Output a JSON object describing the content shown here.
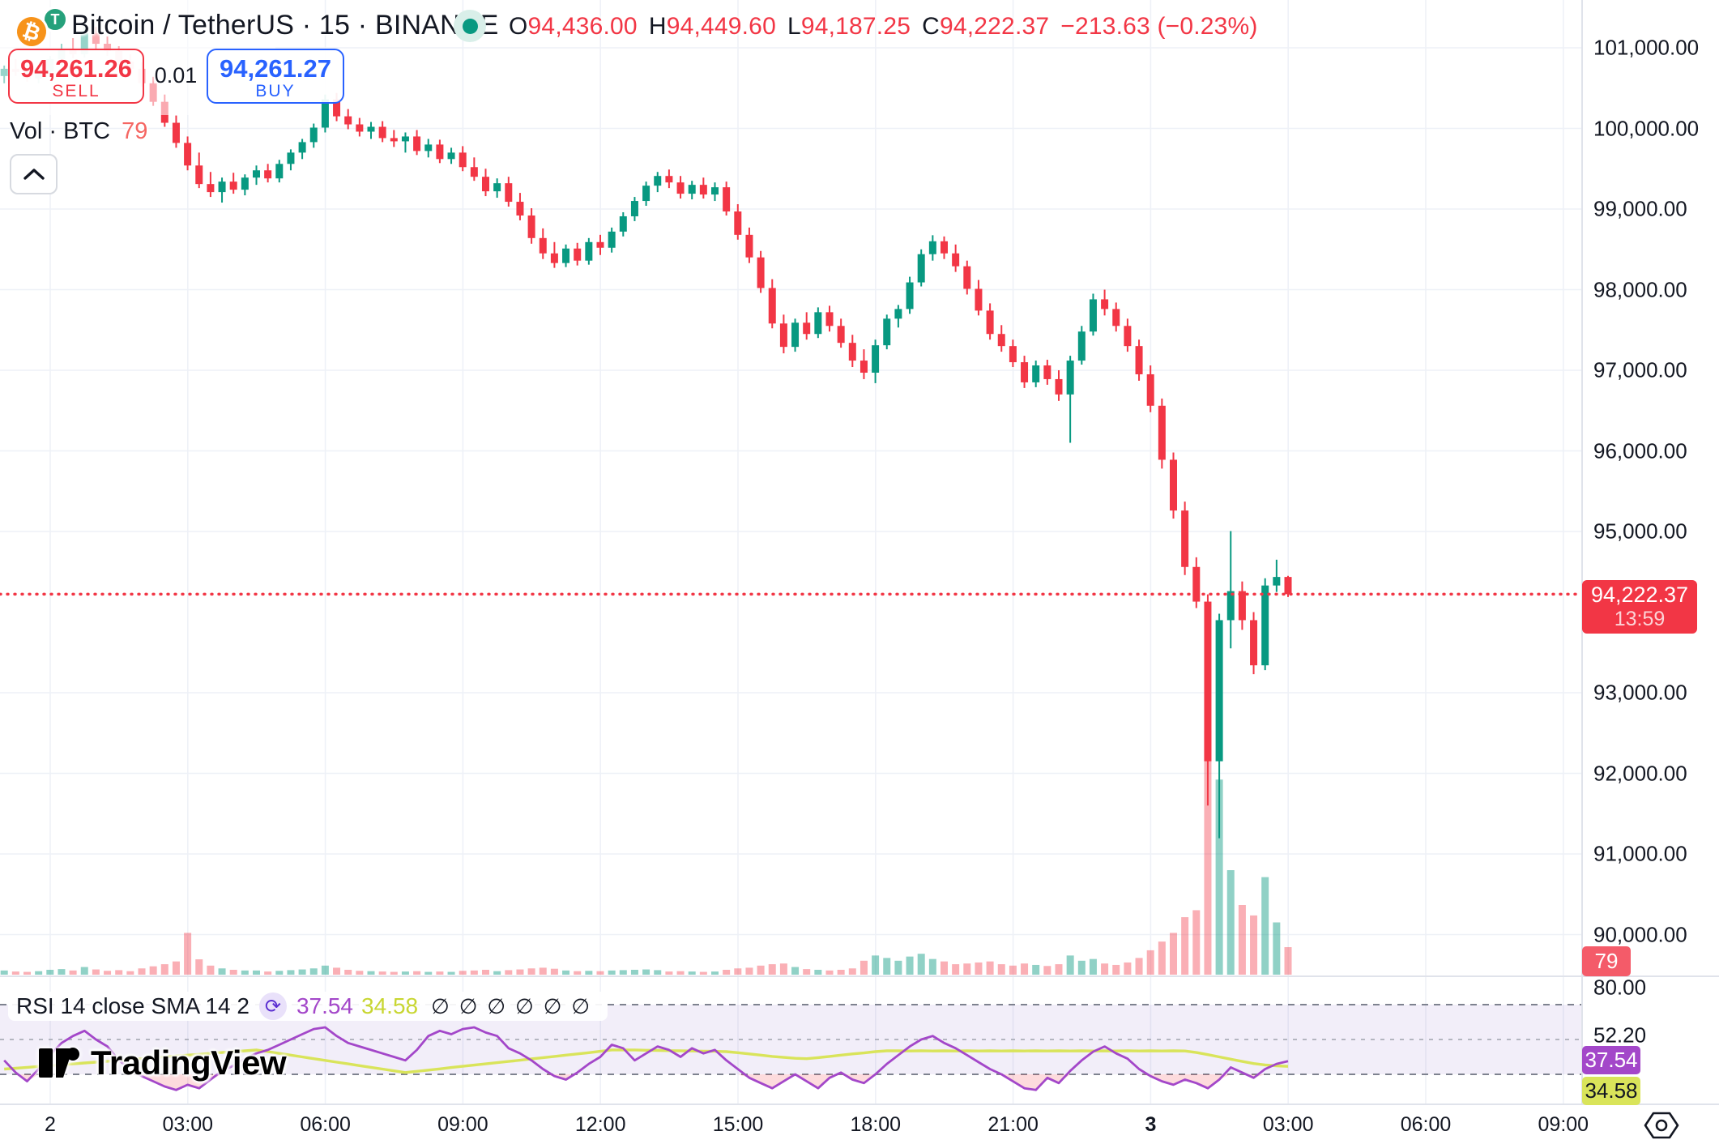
{
  "header": {
    "symbol_title": "Bitcoin / TetherUS · 15 · BINANCE",
    "ohlc": {
      "o_label": "O",
      "o": "94,436.00",
      "h_label": "H",
      "h": "94,449.60",
      "l_label": "L",
      "l": "94,187.25",
      "c_label": "C",
      "c": "94,222.37",
      "change": "−213.63 (−0.23%)"
    }
  },
  "trade_panel": {
    "sell_price": "94,261.26",
    "sell_label": "SELL",
    "spread": "0.01",
    "buy_price": "94,261.27",
    "buy_label": "BUY"
  },
  "volume_row": {
    "label": "Vol · BTC",
    "value": "79"
  },
  "price_scale": {
    "labels": [
      {
        "text": "101,000.00",
        "price": 101000
      },
      {
        "text": "100,000.00",
        "price": 100000
      },
      {
        "text": "99,000.00",
        "price": 99000
      },
      {
        "text": "98,000.00",
        "price": 98000
      },
      {
        "text": "97,000.00",
        "price": 97000
      },
      {
        "text": "96,000.00",
        "price": 96000
      },
      {
        "text": "95,000.00",
        "price": 95000
      },
      {
        "text": "93,000.00",
        "price": 93000
      },
      {
        "text": "92,000.00",
        "price": 92000
      },
      {
        "text": "91,000.00",
        "price": 91000
      },
      {
        "text": "90,000.00",
        "price": 90000
      }
    ],
    "last_price_badge": {
      "price": "94,222.37",
      "countdown": "13:59"
    },
    "volume_badge": "79"
  },
  "rsi_pane": {
    "legend": "RSI 14 close SMA 14 2",
    "rsi_value": "37.54",
    "sma_value": "34.58",
    "empty_values": [
      "∅",
      "∅",
      "∅",
      "∅",
      "∅",
      "∅"
    ],
    "scale_labels": [
      {
        "text": "80.00",
        "value": 80
      },
      {
        "text": "52.20",
        "value": 52.2
      }
    ],
    "badge_rsi": "37.54",
    "badge_sma": "34.58"
  },
  "time_scale": {
    "labels": [
      "2",
      "03:00",
      "06:00",
      "09:00",
      "12:00",
      "15:00",
      "18:00",
      "21:00",
      "3",
      "03:00",
      "06:00",
      "09:00"
    ],
    "bold_indices": [
      8
    ]
  },
  "watermark": "TradingView",
  "colors": {
    "up": "#089981",
    "down": "#F23645",
    "vol_up": "rgba(8,153,129,0.45)",
    "vol_down": "rgba(242,54,69,0.4)",
    "buy_blue": "#2962FF",
    "sell_red": "#F23645",
    "rsi_line": "#A347C9",
    "sma_line": "#D9E45A",
    "rsi_band": "rgba(126,87,194,0.10)",
    "rsi_oversold_fill": "rgba(242,54,69,0.18)",
    "grid": "#EEF1F7",
    "axis_line": "#E0E3EB",
    "dash": "#7E828F",
    "last_price": "#F23645"
  },
  "chart_data": {
    "type": "candlestick",
    "symbol": "BTCUSDT",
    "exchange": "BINANCE",
    "interval_minutes": 15,
    "visible_price_range": [
      89900,
      101450
    ],
    "rsi_levels": [
      70,
      50,
      30
    ],
    "note": "candles are [open, high, low, close, volumeBTC], oldest first, 15-minute bars from 23:00 day 2 to 03:00 day 3",
    "candles": [
      [
        100650,
        100780,
        100560,
        100740,
        12
      ],
      [
        100740,
        100860,
        100650,
        100700,
        9
      ],
      [
        100700,
        100790,
        100580,
        100620,
        8
      ],
      [
        100620,
        100750,
        100560,
        100710,
        10
      ],
      [
        100710,
        100900,
        100640,
        100860,
        14
      ],
      [
        100860,
        101050,
        100790,
        100980,
        16
      ],
      [
        100980,
        101120,
        100870,
        100920,
        12
      ],
      [
        100920,
        101300,
        100880,
        101180,
        22
      ],
      [
        101180,
        101260,
        100990,
        101050,
        15
      ],
      [
        101050,
        101140,
        100900,
        100960,
        11
      ],
      [
        100960,
        101020,
        100780,
        100830,
        13
      ],
      [
        100830,
        100920,
        100690,
        100740,
        10
      ],
      [
        100740,
        100820,
        100520,
        100560,
        18
      ],
      [
        100560,
        100640,
        100280,
        100330,
        24
      ],
      [
        100330,
        100420,
        100020,
        100070,
        30
      ],
      [
        100070,
        100160,
        99760,
        99820,
        38
      ],
      [
        99820,
        99900,
        99480,
        99540,
        120
      ],
      [
        99540,
        99700,
        99260,
        99310,
        44
      ],
      [
        99310,
        99460,
        99150,
        99210,
        26
      ],
      [
        99210,
        99390,
        99080,
        99340,
        18
      ],
      [
        99340,
        99450,
        99190,
        99240,
        14
      ],
      [
        99240,
        99430,
        99170,
        99390,
        12
      ],
      [
        99390,
        99540,
        99300,
        99480,
        12
      ],
      [
        99480,
        99560,
        99330,
        99380,
        9
      ],
      [
        99380,
        99610,
        99330,
        99560,
        11
      ],
      [
        99560,
        99740,
        99480,
        99700,
        13
      ],
      [
        99700,
        99870,
        99620,
        99830,
        15
      ],
      [
        99830,
        100060,
        99760,
        100010,
        18
      ],
      [
        100010,
        100420,
        99950,
        100360,
        26
      ],
      [
        100360,
        100440,
        100090,
        100150,
        20
      ],
      [
        100150,
        100240,
        99990,
        100050,
        14
      ],
      [
        100050,
        100130,
        99900,
        99960,
        11
      ],
      [
        99960,
        100080,
        99870,
        100020,
        10
      ],
      [
        100020,
        100090,
        99830,
        99880,
        9
      ],
      [
        99880,
        99980,
        99770,
        99840,
        8
      ],
      [
        99840,
        99950,
        99700,
        99900,
        9
      ],
      [
        99900,
        99980,
        99670,
        99720,
        10
      ],
      [
        99720,
        99870,
        99640,
        99800,
        8
      ],
      [
        99800,
        99860,
        99570,
        99620,
        9
      ],
      [
        99620,
        99760,
        99560,
        99700,
        8
      ],
      [
        99700,
        99780,
        99470,
        99520,
        11
      ],
      [
        99520,
        99640,
        99350,
        99400,
        12
      ],
      [
        99400,
        99500,
        99160,
        99220,
        14
      ],
      [
        99220,
        99380,
        99140,
        99320,
        10
      ],
      [
        99320,
        99400,
        99030,
        99090,
        13
      ],
      [
        99090,
        99200,
        98860,
        98920,
        15
      ],
      [
        98920,
        99010,
        98570,
        98640,
        18
      ],
      [
        98640,
        98760,
        98380,
        98450,
        20
      ],
      [
        98450,
        98590,
        98270,
        98330,
        17
      ],
      [
        98330,
        98560,
        98280,
        98510,
        12
      ],
      [
        98510,
        98580,
        98300,
        98360,
        10
      ],
      [
        98360,
        98640,
        98310,
        98590,
        11
      ],
      [
        98590,
        98680,
        98430,
        98520,
        10
      ],
      [
        98520,
        98770,
        98460,
        98720,
        12
      ],
      [
        98720,
        98960,
        98660,
        98910,
        13
      ],
      [
        98910,
        99150,
        98850,
        99100,
        14
      ],
      [
        99100,
        99340,
        99040,
        99290,
        15
      ],
      [
        99290,
        99460,
        99210,
        99410,
        13
      ],
      [
        99410,
        99490,
        99260,
        99330,
        9
      ],
      [
        99330,
        99410,
        99130,
        99190,
        10
      ],
      [
        99190,
        99350,
        99120,
        99300,
        9
      ],
      [
        99300,
        99390,
        99130,
        99180,
        8
      ],
      [
        99180,
        99330,
        99100,
        99270,
        9
      ],
      [
        99270,
        99340,
        98920,
        98970,
        14
      ],
      [
        98970,
        99060,
        98620,
        98680,
        18
      ],
      [
        98680,
        98770,
        98330,
        98400,
        20
      ],
      [
        98400,
        98480,
        97960,
        98020,
        26
      ],
      [
        98020,
        98130,
        97520,
        97580,
        30
      ],
      [
        97580,
        97690,
        97210,
        97290,
        32
      ],
      [
        97290,
        97640,
        97230,
        97590,
        22
      ],
      [
        97590,
        97720,
        97380,
        97450,
        16
      ],
      [
        97450,
        97780,
        97400,
        97720,
        14
      ],
      [
        97720,
        97800,
        97480,
        97550,
        12
      ],
      [
        97550,
        97640,
        97280,
        97340,
        14
      ],
      [
        97340,
        97440,
        97040,
        97120,
        18
      ],
      [
        97120,
        97260,
        96890,
        96970,
        40
      ],
      [
        96970,
        97380,
        96840,
        97310,
        55
      ],
      [
        97310,
        97690,
        97260,
        97640,
        48
      ],
      [
        97640,
        97810,
        97530,
        97760,
        40
      ],
      [
        97760,
        98160,
        97700,
        98090,
        52
      ],
      [
        98090,
        98500,
        98040,
        98440,
        60
      ],
      [
        98440,
        98675,
        98360,
        98600,
        45
      ],
      [
        98600,
        98660,
        98380,
        98450,
        38
      ],
      [
        98450,
        98560,
        98220,
        98290,
        30
      ],
      [
        98290,
        98360,
        97940,
        98010,
        32
      ],
      [
        98010,
        98120,
        97680,
        97740,
        35
      ],
      [
        97740,
        97830,
        97380,
        97450,
        38
      ],
      [
        97450,
        97560,
        97230,
        97300,
        30
      ],
      [
        97300,
        97380,
        97040,
        97100,
        26
      ],
      [
        97100,
        97180,
        96780,
        96850,
        32
      ],
      [
        96850,
        97120,
        96790,
        97060,
        28
      ],
      [
        97060,
        97130,
        96820,
        96890,
        25
      ],
      [
        96890,
        97000,
        96620,
        96700,
        30
      ],
      [
        96700,
        97180,
        96100,
        97120,
        55
      ],
      [
        97120,
        97550,
        97070,
        97480,
        40
      ],
      [
        97480,
        97950,
        97430,
        97880,
        45
      ],
      [
        97880,
        98000,
        97680,
        97760,
        32
      ],
      [
        97760,
        97840,
        97480,
        97550,
        28
      ],
      [
        97550,
        97640,
        97230,
        97300,
        35
      ],
      [
        97300,
        97380,
        96870,
        96950,
        48
      ],
      [
        96950,
        97060,
        96480,
        96560,
        70
      ],
      [
        96560,
        96650,
        95780,
        95890,
        95
      ],
      [
        95890,
        95980,
        95160,
        95260,
        120
      ],
      [
        95260,
        95370,
        94460,
        94560,
        165
      ],
      [
        94560,
        94680,
        94050,
        94130,
        185
      ],
      [
        94130,
        94220,
        91600,
        92150,
        700
      ],
      [
        92150,
        93980,
        91195,
        93900,
        560
      ],
      [
        93900,
        95005,
        93550,
        94260,
        300
      ],
      [
        94260,
        94380,
        93780,
        93900,
        200
      ],
      [
        93900,
        94000,
        93230,
        93340,
        170
      ],
      [
        93340,
        94420,
        93280,
        94330,
        280
      ],
      [
        94330,
        94650,
        94250,
        94436,
        150
      ],
      [
        94436,
        94449.6,
        94187.25,
        94222.37,
        79
      ]
    ],
    "rsi": [
      38,
      31,
      26,
      33,
      41,
      48,
      52,
      55,
      50,
      46,
      38,
      33,
      29,
      26,
      23,
      21,
      24,
      22,
      27,
      32,
      35,
      39,
      42,
      44,
      47,
      50,
      53,
      56,
      57,
      52,
      48,
      46,
      44,
      42,
      40,
      38,
      44,
      52,
      55,
      53,
      56,
      57,
      54,
      52,
      45,
      42,
      38,
      33,
      29,
      27,
      31,
      36,
      40,
      47,
      45,
      38,
      42,
      46,
      44,
      40,
      45,
      42,
      44,
      38,
      33,
      28,
      25,
      22,
      26,
      30,
      26,
      22,
      28,
      31,
      27,
      25,
      30,
      36,
      41,
      46,
      50,
      52,
      48,
      45,
      41,
      37,
      33,
      30,
      26,
      22,
      21,
      28,
      25,
      32,
      38,
      43,
      46,
      42,
      39,
      33,
      29,
      26,
      24,
      27,
      25,
      22,
      27,
      34,
      31,
      28,
      33,
      36,
      37.54
    ],
    "sma": [
      33,
      33.5,
      34,
      34.5,
      35,
      35.5,
      36,
      36.5,
      37,
      37.5,
      38,
      38.5,
      39,
      39.5,
      40,
      40.5,
      41,
      41.5,
      42,
      42.5,
      43,
      43.5,
      44,
      43,
      42,
      41,
      40,
      39,
      38,
      37,
      36,
      35,
      34,
      33,
      32,
      31,
      31.7,
      32.4,
      33.1,
      33.9,
      34.6,
      35.3,
      36,
      36.7,
      37.4,
      38.1,
      38.9,
      39.6,
      40.3,
      41,
      41.7,
      42.4,
      43.2,
      44,
      44,
      44,
      43.8,
      43.7,
      43.6,
      43.5,
      43.4,
      43.3,
      43.2,
      43,
      42.4,
      41.7,
      41,
      40.3,
      39.7,
      39.2,
      39,
      39.6,
      40.3,
      41,
      41.7,
      42.3,
      43,
      43.5,
      43.5,
      43.4,
      43.5,
      43.4,
      43.5,
      43.4,
      43.5,
      43.4,
      43.5,
      43.4,
      43.5,
      43.4,
      43.5,
      43.4,
      43.5,
      43.4,
      43.5,
      43.4,
      43.5,
      43.4,
      43.5,
      43.4,
      43.5,
      43.4,
      43.5,
      43.4,
      42.5,
      41.3,
      40,
      38.7,
      37.4,
      36.2,
      35.4,
      34.9,
      34.58
    ],
    "last_price": 94222.37,
    "last_volume": 79,
    "rsi_last": 37.54,
    "sma_last": 34.58
  }
}
